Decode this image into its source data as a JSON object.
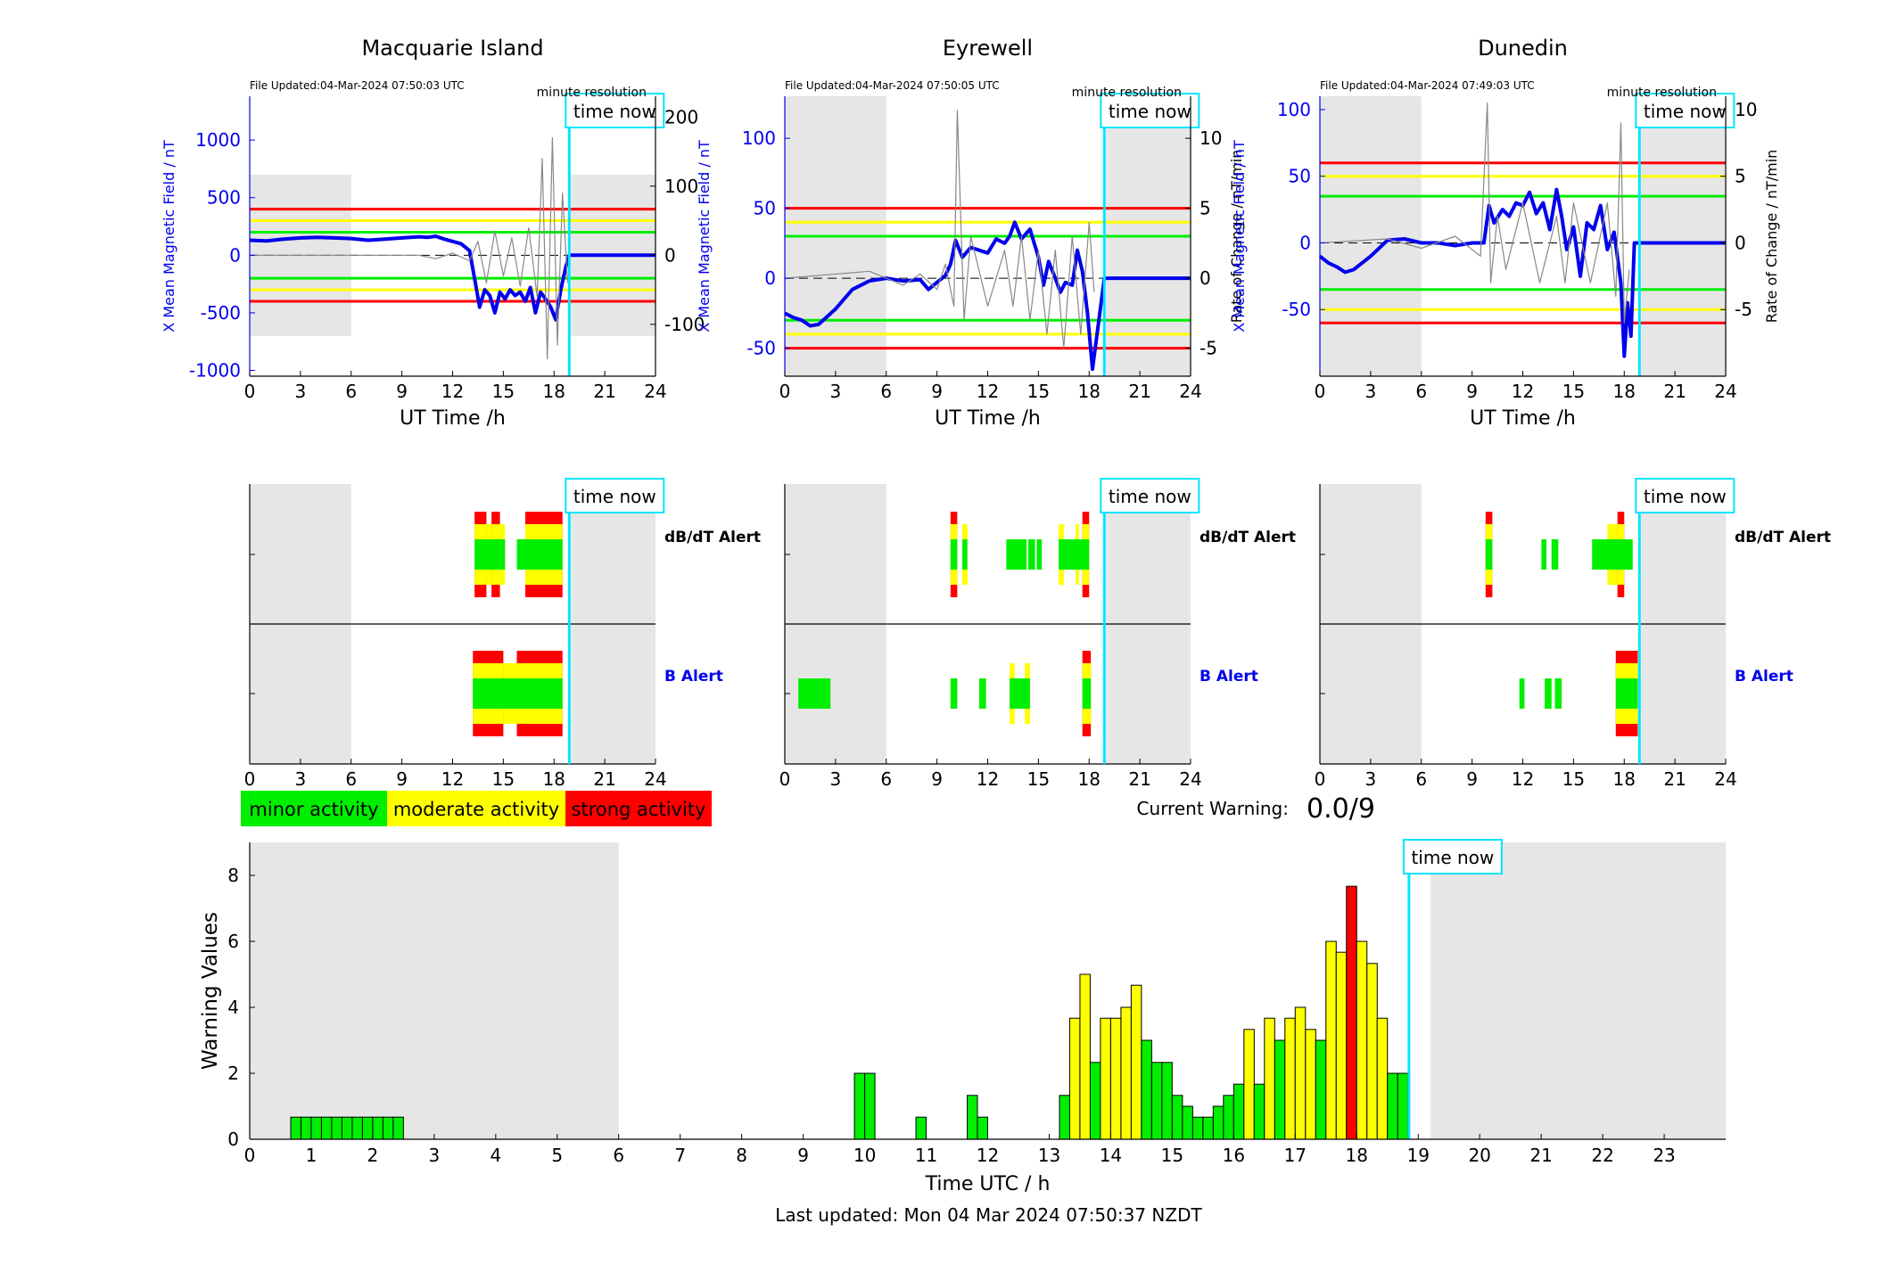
{
  "colors": {
    "minor": "#00ee00",
    "moderate": "#ffff00",
    "strong": "#ff0000",
    "nighttime": "#e6e6e6",
    "field": "#0000ee",
    "rate": "#888888",
    "time_now": "#00e5ff"
  },
  "common": {
    "time_now_label": "time now",
    "xlabel": "UT Time /h",
    "resolution_label": "minute resolution",
    "dbdt_label": "dB/dT Alert",
    "b_label": "B Alert"
  },
  "legend": {
    "minor": "minor activity",
    "moderate": "moderate activity",
    "strong": "strong activity"
  },
  "current_warning": {
    "label": "Current Warning:",
    "value": "0.0/9"
  },
  "last_updated": "Last updated: Mon 04 Mar 2024 07:50:37 NZDT",
  "chart_data": [
    {
      "type": "line",
      "title": "Macquarie Island",
      "file_updated": "File Updated:04-Mar-2024 07:50:03 UTC",
      "xlabel": "UT Time /h",
      "ylabel_left": "X Mean Magnetic Field / nT",
      "ylabel_right": "",
      "xlim": [
        0,
        24
      ],
      "xticks": [
        0,
        3,
        6,
        9,
        12,
        15,
        18,
        21,
        24
      ],
      "ylim_left": [
        -1050,
        1380
      ],
      "yticks_left": [
        -1000,
        -500,
        0,
        500,
        1000
      ],
      "ylim_right": [
        -175,
        230
      ],
      "yticks_right": [
        -100,
        0,
        100,
        200
      ],
      "time_now": 18.9,
      "night": [
        [
          0,
          6
        ],
        [
          19,
          24
        ]
      ],
      "night_band_left": [
        -700,
        700
      ],
      "thresholds_left": {
        "green": 200,
        "yellow": 300,
        "red": 400
      },
      "series": [
        {
          "name": "X Mean Magnetic Field / nT",
          "axis": "left",
          "x": [
            0,
            1,
            2,
            3,
            4,
            5,
            6,
            7,
            8,
            9,
            10,
            10.5,
            11,
            11.5,
            12,
            12.5,
            13,
            13.3,
            13.6,
            13.9,
            14.2,
            14.5,
            14.8,
            15.1,
            15.4,
            15.7,
            16,
            16.3,
            16.6,
            16.9,
            17.2,
            17.5,
            17.8,
            18.1,
            18.4,
            18.7,
            18.9,
            24
          ],
          "y": [
            130,
            125,
            140,
            150,
            155,
            150,
            145,
            130,
            140,
            150,
            160,
            155,
            165,
            140,
            120,
            100,
            40,
            -200,
            -450,
            -300,
            -350,
            -500,
            -320,
            -380,
            -300,
            -350,
            -320,
            -400,
            -280,
            -500,
            -320,
            -380,
            -450,
            -560,
            -300,
            -100,
            0,
            0
          ]
        },
        {
          "name": "Rate of Change / nT/min",
          "axis": "right",
          "x": [
            0,
            10,
            11,
            12,
            13,
            13.5,
            14,
            14.5,
            15,
            15.5,
            16,
            16.5,
            17,
            17.3,
            17.6,
            17.9,
            18.2,
            18.5,
            18.8
          ],
          "y": [
            0,
            0,
            -5,
            3,
            -8,
            20,
            -40,
            35,
            -30,
            25,
            -45,
            40,
            -60,
            140,
            -150,
            170,
            -130,
            90,
            -40
          ]
        }
      ],
      "dbdt_alert": [
        {
          "x0": 13.3,
          "x1": 14.0,
          "level": "strong"
        },
        {
          "x0": 14.0,
          "x1": 14.3,
          "level": "moderate"
        },
        {
          "x0": 14.3,
          "x1": 14.8,
          "level": "strong"
        },
        {
          "x0": 14.8,
          "x1": 15.1,
          "level": "moderate"
        },
        {
          "x0": 16.3,
          "x1": 18.5,
          "level": "strong"
        }
      ],
      "dbdt_alert_minor": [
        [
          13.3,
          15.1
        ],
        [
          15.8,
          18.5
        ]
      ],
      "b_alert": [
        {
          "x0": 13.2,
          "x1": 15.0,
          "level": "strong"
        },
        {
          "x0": 15.0,
          "x1": 15.8,
          "level": "moderate"
        },
        {
          "x0": 15.8,
          "x1": 18.5,
          "level": "strong"
        }
      ],
      "b_alert_minor": [
        [
          13.2,
          18.5
        ]
      ]
    },
    {
      "type": "line",
      "title": "Eyrewell",
      "file_updated": "File Updated:04-Mar-2024 07:50:05 UTC",
      "xlabel": "UT Time /h",
      "ylabel_left": "X Mean Magnetic Field / nT",
      "ylabel_right": "Rate of Change / nT/min",
      "xlim": [
        0,
        24
      ],
      "xticks": [
        0,
        3,
        6,
        9,
        12,
        15,
        18,
        21,
        24
      ],
      "ylim_left": [
        -70,
        130
      ],
      "yticks_left": [
        -50,
        0,
        50,
        100
      ],
      "ylim_right": [
        -7,
        13
      ],
      "yticks_right": [
        -5,
        0,
        5,
        10
      ],
      "time_now": 18.9,
      "night": [
        [
          0,
          6
        ],
        [
          19,
          24
        ]
      ],
      "night_band_left": [
        -70,
        130
      ],
      "thresholds_left": {
        "green": 30,
        "yellow": 40,
        "red": 50
      },
      "series": [
        {
          "name": "X Mean Magnetic Field / nT",
          "axis": "left",
          "x": [
            0,
            0.5,
            1,
            1.5,
            2,
            3,
            4,
            5,
            6,
            7,
            8,
            8.5,
            9,
            9.5,
            9.8,
            10.1,
            10.5,
            11,
            11.5,
            12,
            12.5,
            13,
            13.3,
            13.6,
            14,
            14.5,
            15,
            15.3,
            15.6,
            16,
            16.3,
            16.6,
            17,
            17.3,
            17.6,
            17.9,
            18.2,
            18.9,
            24
          ],
          "y": [
            -25,
            -28,
            -30,
            -34,
            -33,
            -22,
            -8,
            -2,
            0,
            -2,
            -1,
            -8,
            -3,
            2,
            10,
            27,
            15,
            22,
            20,
            18,
            28,
            25,
            30,
            40,
            28,
            35,
            15,
            -5,
            12,
            0,
            -10,
            -3,
            -5,
            20,
            5,
            -25,
            -65,
            0,
            0
          ]
        },
        {
          "name": "Rate of Change / nT/min",
          "axis": "right",
          "x": [
            0,
            5,
            6,
            7,
            8,
            9,
            9.5,
            10,
            10.2,
            10.6,
            11,
            12,
            13,
            13.5,
            14,
            14.5,
            15,
            15.5,
            16,
            16.5,
            17,
            17.5,
            18,
            18.3
          ],
          "y": [
            0,
            0.5,
            0,
            -0.5,
            0.3,
            -0.8,
            1,
            -2,
            12,
            -3,
            3,
            -2,
            2,
            -2,
            3,
            -3,
            2,
            -4,
            2,
            -5,
            3,
            -4,
            4,
            -1
          ]
        }
      ],
      "dbdt_alert": [
        {
          "x0": 9.8,
          "x1": 10.2,
          "level": "strong"
        },
        {
          "x0": 10.5,
          "x1": 10.8,
          "level": "moderate"
        },
        {
          "x0": 16.2,
          "x1": 16.5,
          "level": "moderate"
        },
        {
          "x0": 17.2,
          "x1": 17.4,
          "level": "moderate"
        },
        {
          "x0": 17.6,
          "x1": 18.0,
          "level": "strong"
        }
      ],
      "dbdt_alert_minor": [
        [
          9.8,
          10.2
        ],
        [
          10.5,
          10.8
        ],
        [
          13.1,
          14.3
        ],
        [
          14.4,
          14.8
        ],
        [
          14.9,
          15.2
        ],
        [
          16.2,
          18.0
        ]
      ],
      "b_alert": [
        {
          "x0": 13.3,
          "x1": 13.6,
          "level": "moderate"
        },
        {
          "x0": 14.2,
          "x1": 14.5,
          "level": "moderate"
        },
        {
          "x0": 17.6,
          "x1": 18.1,
          "level": "strong"
        }
      ],
      "b_alert_minor": [
        [
          0.8,
          2.7
        ],
        [
          9.8,
          10.2
        ],
        [
          11.5,
          11.9
        ],
        [
          13.3,
          14.5
        ],
        [
          17.6,
          18.1
        ]
      ]
    },
    {
      "type": "line",
      "title": "Dunedin",
      "file_updated": "File Updated:04-Mar-2024 07:49:03 UTC",
      "xlabel": "UT Time /h",
      "ylabel_left": "X Mean Magnetic Field / nT",
      "ylabel_right": "Rate of Change / nT/min",
      "xlim": [
        0,
        24
      ],
      "xticks": [
        0,
        3,
        6,
        9,
        12,
        15,
        18,
        21,
        24
      ],
      "ylim_left": [
        -100,
        110
      ],
      "yticks_left": [
        -50,
        0,
        50,
        100
      ],
      "ylim_right": [
        -10,
        11
      ],
      "yticks_right": [
        -5,
        0,
        5,
        10
      ],
      "time_now": 18.9,
      "night": [
        [
          0,
          6
        ],
        [
          19,
          24
        ]
      ],
      "night_band_left": [
        -100,
        110
      ],
      "thresholds_left": {
        "green": 35,
        "yellow": 50,
        "red": 60
      },
      "series": [
        {
          "name": "X Mean Magnetic Field / nT",
          "axis": "left",
          "x": [
            0,
            0.5,
            1,
            1.5,
            2,
            3,
            4,
            5,
            6,
            7,
            8,
            9,
            9.7,
            10,
            10.3,
            10.8,
            11.2,
            11.6,
            12,
            12.4,
            12.8,
            13.2,
            13.6,
            14,
            14.3,
            14.6,
            15,
            15.4,
            15.8,
            16.2,
            16.6,
            17,
            17.4,
            17.8,
            18.0,
            18.2,
            18.4,
            18.6,
            18.9,
            24
          ],
          "y": [
            -10,
            -15,
            -18,
            -22,
            -20,
            -10,
            2,
            3,
            0,
            0,
            -2,
            0,
            0,
            28,
            15,
            25,
            20,
            30,
            28,
            38,
            22,
            30,
            10,
            40,
            20,
            -5,
            12,
            -25,
            15,
            10,
            28,
            -5,
            8,
            -30,
            -85,
            -45,
            -70,
            0,
            0,
            0
          ]
        },
        {
          "name": "Rate of Change / nT/min",
          "axis": "right",
          "x": [
            0,
            4,
            6,
            8,
            9.5,
            9.9,
            10.1,
            10.5,
            11,
            12,
            13,
            14,
            14.5,
            15,
            16,
            17,
            17.5,
            17.8,
            18,
            18.3
          ],
          "y": [
            0,
            0.3,
            -0.4,
            0.5,
            -1,
            10.5,
            -3,
            2,
            -2,
            3,
            -3,
            2,
            -3,
            3,
            -3,
            3,
            -4,
            9,
            -6,
            -2
          ]
        }
      ],
      "dbdt_alert": [
        {
          "x0": 9.8,
          "x1": 10.2,
          "level": "strong"
        },
        {
          "x0": 17.0,
          "x1": 17.6,
          "level": "moderate"
        },
        {
          "x0": 17.6,
          "x1": 18.0,
          "level": "strong"
        }
      ],
      "dbdt_alert_minor": [
        [
          9.8,
          10.2
        ],
        [
          13.1,
          13.4
        ],
        [
          13.7,
          14.1
        ],
        [
          16.1,
          18.5
        ]
      ],
      "b_alert": [
        {
          "x0": 17.5,
          "x1": 18.8,
          "level": "strong"
        }
      ],
      "b_alert_minor": [
        [
          11.8,
          12.1
        ],
        [
          13.3,
          13.7
        ],
        [
          13.9,
          14.3
        ],
        [
          17.5,
          18.8
        ]
      ]
    },
    {
      "type": "bar",
      "title": "",
      "xlabel": "Time UTC / h",
      "ylabel": "Warning Values",
      "xlim": [
        0,
        24
      ],
      "xticks": [
        0,
        1,
        2,
        3,
        4,
        5,
        6,
        7,
        8,
        9,
        10,
        11,
        12,
        13,
        14,
        15,
        16,
        17,
        18,
        19,
        20,
        21,
        22,
        23
      ],
      "ylim": [
        0,
        9
      ],
      "yticks": [
        0,
        2,
        4,
        6,
        8
      ],
      "time_now": 18.85,
      "night": [
        [
          0,
          6
        ],
        [
          19.2,
          24
        ]
      ],
      "bar_width_h": 0.1667,
      "bars": [
        {
          "t": 0.667,
          "v": 0.67,
          "level": "minor"
        },
        {
          "t": 0.833,
          "v": 0.67,
          "level": "minor"
        },
        {
          "t": 1.0,
          "v": 0.67,
          "level": "minor"
        },
        {
          "t": 1.167,
          "v": 0.67,
          "level": "minor"
        },
        {
          "t": 1.333,
          "v": 0.67,
          "level": "minor"
        },
        {
          "t": 1.5,
          "v": 0.67,
          "level": "minor"
        },
        {
          "t": 1.667,
          "v": 0.67,
          "level": "minor"
        },
        {
          "t": 1.833,
          "v": 0.67,
          "level": "minor"
        },
        {
          "t": 2.0,
          "v": 0.67,
          "level": "minor"
        },
        {
          "t": 2.167,
          "v": 0.67,
          "level": "minor"
        },
        {
          "t": 2.333,
          "v": 0.67,
          "level": "minor"
        },
        {
          "t": 9.833,
          "v": 2.0,
          "level": "minor"
        },
        {
          "t": 10.0,
          "v": 2.0,
          "level": "minor"
        },
        {
          "t": 10.833,
          "v": 0.67,
          "level": "minor"
        },
        {
          "t": 11.667,
          "v": 1.33,
          "level": "minor"
        },
        {
          "t": 11.833,
          "v": 0.67,
          "level": "minor"
        },
        {
          "t": 13.167,
          "v": 1.33,
          "level": "minor"
        },
        {
          "t": 13.333,
          "v": 3.67,
          "level": "moderate"
        },
        {
          "t": 13.5,
          "v": 5.0,
          "level": "moderate"
        },
        {
          "t": 13.667,
          "v": 2.33,
          "level": "minor"
        },
        {
          "t": 13.833,
          "v": 3.67,
          "level": "moderate"
        },
        {
          "t": 14.0,
          "v": 3.67,
          "level": "moderate"
        },
        {
          "t": 14.167,
          "v": 4.0,
          "level": "moderate"
        },
        {
          "t": 14.333,
          "v": 4.67,
          "level": "moderate"
        },
        {
          "t": 14.5,
          "v": 3.0,
          "level": "minor"
        },
        {
          "t": 14.667,
          "v": 2.33,
          "level": "minor"
        },
        {
          "t": 14.833,
          "v": 2.33,
          "level": "minor"
        },
        {
          "t": 15.0,
          "v": 1.33,
          "level": "minor"
        },
        {
          "t": 15.167,
          "v": 1.0,
          "level": "minor"
        },
        {
          "t": 15.333,
          "v": 0.67,
          "level": "minor"
        },
        {
          "t": 15.5,
          "v": 0.67,
          "level": "minor"
        },
        {
          "t": 15.667,
          "v": 1.0,
          "level": "minor"
        },
        {
          "t": 15.833,
          "v": 1.33,
          "level": "minor"
        },
        {
          "t": 16.0,
          "v": 1.67,
          "level": "minor"
        },
        {
          "t": 16.167,
          "v": 3.33,
          "level": "moderate"
        },
        {
          "t": 16.333,
          "v": 1.67,
          "level": "minor"
        },
        {
          "t": 16.5,
          "v": 3.67,
          "level": "moderate"
        },
        {
          "t": 16.667,
          "v": 3.0,
          "level": "minor"
        },
        {
          "t": 16.833,
          "v": 3.67,
          "level": "moderate"
        },
        {
          "t": 17.0,
          "v": 4.0,
          "level": "moderate"
        },
        {
          "t": 17.167,
          "v": 3.33,
          "level": "moderate"
        },
        {
          "t": 17.333,
          "v": 3.0,
          "level": "minor"
        },
        {
          "t": 17.5,
          "v": 6.0,
          "level": "moderate"
        },
        {
          "t": 17.667,
          "v": 5.67,
          "level": "moderate"
        },
        {
          "t": 17.833,
          "v": 7.67,
          "level": "strong"
        },
        {
          "t": 18.0,
          "v": 6.0,
          "level": "moderate"
        },
        {
          "t": 18.167,
          "v": 5.33,
          "level": "moderate"
        },
        {
          "t": 18.333,
          "v": 3.67,
          "level": "moderate"
        },
        {
          "t": 18.5,
          "v": 2.0,
          "level": "minor"
        },
        {
          "t": 18.667,
          "v": 2.0,
          "level": "minor"
        }
      ]
    }
  ]
}
